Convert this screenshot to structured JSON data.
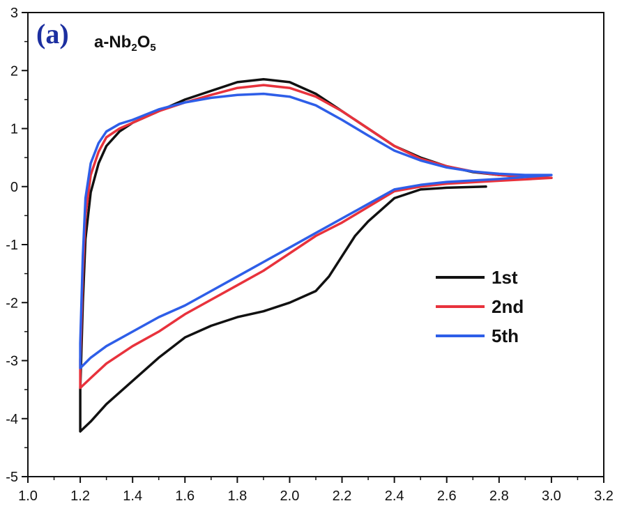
{
  "chart_data": {
    "type": "line",
    "panel_label": "(a)",
    "title": "a-Nb2O5",
    "title_parts": [
      {
        "text": "a-Nb",
        "sub": false
      },
      {
        "text": "2",
        "sub": true
      },
      {
        "text": "O",
        "sub": false
      },
      {
        "text": "5",
        "sub": true
      }
    ],
    "xlabel": "",
    "ylabel": "",
    "xlim": [
      1.0,
      3.2
    ],
    "ylim": [
      -5,
      3
    ],
    "xticks": [
      "1.0",
      "1.2",
      "1.4",
      "1.6",
      "1.8",
      "2.0",
      "2.2",
      "2.4",
      "2.6",
      "2.8",
      "3.0",
      "3.2"
    ],
    "yticks": [
      "-5",
      "-4",
      "-3",
      "-2",
      "-1",
      "0",
      "1",
      "2",
      "3"
    ],
    "grid": false,
    "legend_position": "center-right",
    "series": [
      {
        "name": "1st",
        "color": "#111111",
        "points": [
          [
            2.75,
            0.0
          ],
          [
            2.6,
            -0.02
          ],
          [
            2.5,
            -0.05
          ],
          [
            2.4,
            -0.2
          ],
          [
            2.35,
            -0.4
          ],
          [
            2.3,
            -0.6
          ],
          [
            2.25,
            -0.85
          ],
          [
            2.2,
            -1.2
          ],
          [
            2.15,
            -1.55
          ],
          [
            2.1,
            -1.8
          ],
          [
            2.0,
            -2.0
          ],
          [
            1.9,
            -2.15
          ],
          [
            1.8,
            -2.25
          ],
          [
            1.7,
            -2.4
          ],
          [
            1.6,
            -2.6
          ],
          [
            1.5,
            -2.95
          ],
          [
            1.4,
            -3.35
          ],
          [
            1.3,
            -3.75
          ],
          [
            1.24,
            -4.05
          ],
          [
            1.2,
            -4.22
          ],
          [
            1.2,
            -3.5
          ],
          [
            1.21,
            -2.0
          ],
          [
            1.22,
            -0.9
          ],
          [
            1.24,
            -0.1
          ],
          [
            1.27,
            0.4
          ],
          [
            1.3,
            0.7
          ],
          [
            1.35,
            0.95
          ],
          [
            1.4,
            1.1
          ],
          [
            1.5,
            1.3
          ],
          [
            1.6,
            1.5
          ],
          [
            1.7,
            1.65
          ],
          [
            1.8,
            1.8
          ],
          [
            1.9,
            1.85
          ],
          [
            2.0,
            1.8
          ],
          [
            2.1,
            1.6
          ],
          [
            2.2,
            1.3
          ],
          [
            2.3,
            1.0
          ],
          [
            2.4,
            0.7
          ],
          [
            2.5,
            0.5
          ],
          [
            2.6,
            0.35
          ],
          [
            2.7,
            0.25
          ],
          [
            2.8,
            0.2
          ],
          [
            2.9,
            0.17
          ],
          [
            3.0,
            0.15
          ]
        ]
      },
      {
        "name": "2nd",
        "color": "#e8323c",
        "points": [
          [
            3.0,
            0.15
          ],
          [
            2.8,
            0.1
          ],
          [
            2.6,
            0.05
          ],
          [
            2.5,
            0.0
          ],
          [
            2.4,
            -0.08
          ],
          [
            2.3,
            -0.35
          ],
          [
            2.2,
            -0.62
          ],
          [
            2.1,
            -0.85
          ],
          [
            2.0,
            -1.15
          ],
          [
            1.9,
            -1.45
          ],
          [
            1.8,
            -1.7
          ],
          [
            1.7,
            -1.95
          ],
          [
            1.6,
            -2.2
          ],
          [
            1.5,
            -2.5
          ],
          [
            1.4,
            -2.75
          ],
          [
            1.3,
            -3.05
          ],
          [
            1.24,
            -3.3
          ],
          [
            1.2,
            -3.47
          ],
          [
            1.2,
            -3.0
          ],
          [
            1.21,
            -1.5
          ],
          [
            1.22,
            -0.5
          ],
          [
            1.24,
            0.2
          ],
          [
            1.27,
            0.6
          ],
          [
            1.3,
            0.85
          ],
          [
            1.35,
            1.0
          ],
          [
            1.4,
            1.1
          ],
          [
            1.5,
            1.3
          ],
          [
            1.6,
            1.45
          ],
          [
            1.7,
            1.58
          ],
          [
            1.8,
            1.7
          ],
          [
            1.9,
            1.75
          ],
          [
            2.0,
            1.7
          ],
          [
            2.1,
            1.55
          ],
          [
            2.2,
            1.3
          ],
          [
            2.3,
            1.0
          ],
          [
            2.4,
            0.7
          ],
          [
            2.5,
            0.48
          ],
          [
            2.6,
            0.35
          ],
          [
            2.7,
            0.26
          ],
          [
            2.8,
            0.2
          ],
          [
            2.9,
            0.17
          ],
          [
            3.0,
            0.15
          ]
        ]
      },
      {
        "name": "5th",
        "color": "#2e5ee8",
        "points": [
          [
            3.0,
            0.2
          ],
          [
            2.8,
            0.13
          ],
          [
            2.6,
            0.08
          ],
          [
            2.5,
            0.03
          ],
          [
            2.4,
            -0.05
          ],
          [
            2.3,
            -0.3
          ],
          [
            2.2,
            -0.55
          ],
          [
            2.1,
            -0.8
          ],
          [
            2.0,
            -1.05
          ],
          [
            1.9,
            -1.3
          ],
          [
            1.8,
            -1.55
          ],
          [
            1.7,
            -1.8
          ],
          [
            1.6,
            -2.05
          ],
          [
            1.5,
            -2.25
          ],
          [
            1.4,
            -2.5
          ],
          [
            1.3,
            -2.75
          ],
          [
            1.24,
            -2.95
          ],
          [
            1.2,
            -3.13
          ],
          [
            1.2,
            -2.7
          ],
          [
            1.21,
            -1.2
          ],
          [
            1.22,
            -0.2
          ],
          [
            1.24,
            0.4
          ],
          [
            1.27,
            0.75
          ],
          [
            1.3,
            0.95
          ],
          [
            1.35,
            1.08
          ],
          [
            1.4,
            1.15
          ],
          [
            1.5,
            1.33
          ],
          [
            1.6,
            1.45
          ],
          [
            1.7,
            1.53
          ],
          [
            1.8,
            1.58
          ],
          [
            1.9,
            1.6
          ],
          [
            2.0,
            1.55
          ],
          [
            2.1,
            1.4
          ],
          [
            2.2,
            1.15
          ],
          [
            2.3,
            0.88
          ],
          [
            2.4,
            0.62
          ],
          [
            2.5,
            0.45
          ],
          [
            2.6,
            0.33
          ],
          [
            2.7,
            0.26
          ],
          [
            2.8,
            0.22
          ],
          [
            2.9,
            0.2
          ],
          [
            3.0,
            0.2
          ]
        ]
      }
    ]
  }
}
